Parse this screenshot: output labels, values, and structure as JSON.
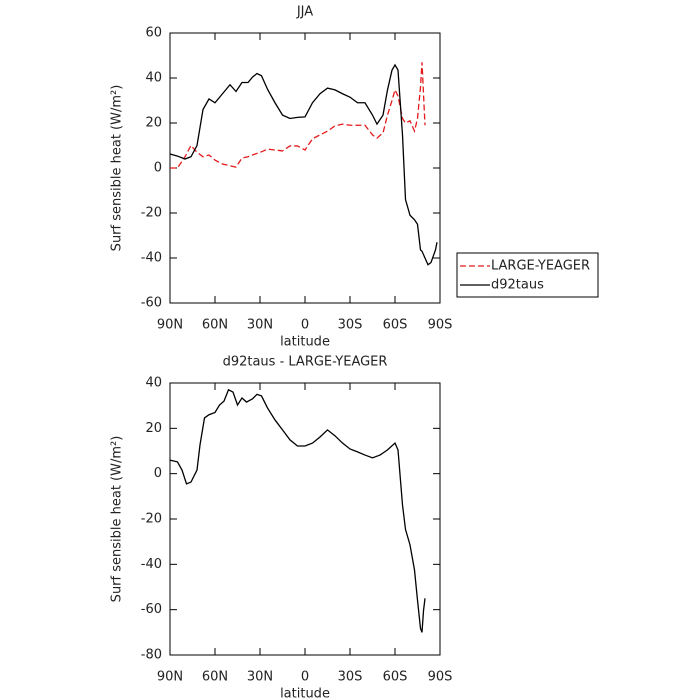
{
  "chart_data": [
    {
      "type": "line",
      "title": "JJA",
      "xlabel": "latitude",
      "ylabel": "Surf sensible heat (W/m²)",
      "x": [
        90,
        85,
        80,
        76,
        72,
        68,
        64,
        60,
        55,
        50,
        46,
        42,
        38,
        35,
        32,
        29,
        25,
        20,
        15,
        10,
        5,
        0,
        -5,
        -10,
        -15,
        -20,
        -25,
        -30,
        -35,
        -40,
        -45,
        -48,
        -52,
        -55,
        -58,
        -60,
        -62,
        -65,
        -67,
        -70,
        -73,
        -75,
        -77,
        -78,
        -80,
        -82,
        -84,
        -87,
        -88
      ],
      "series": [
        {
          "name": "LARGE-YEAGER",
          "color": "#e41a1c",
          "dashed": true,
          "values": [
            0,
            0,
            5,
            10,
            7,
            5,
            5.8,
            3.5,
            1.8,
            1,
            0.4,
            4.4,
            5,
            5.8,
            6.5,
            7.2,
            8.4,
            8,
            7.6,
            9.8,
            9.8,
            8,
            13,
            14.7,
            16.4,
            18.7,
            19.5,
            19,
            19,
            19,
            14.7,
            13.3,
            15.6,
            23.5,
            30,
            34.7,
            32,
            22,
            20,
            21,
            16.4,
            22,
            36,
            47,
            19,
            null,
            null,
            null,
            null
          ]
        },
        {
          "name": "d92taus",
          "color": "#000000",
          "dashed": false,
          "values": [
            6.2,
            5.3,
            4,
            5,
            10,
            26,
            30.7,
            29,
            33,
            37,
            34,
            38,
            38,
            40.4,
            42,
            41,
            35,
            29,
            23.5,
            22,
            22.5,
            22.7,
            29,
            33,
            35.5,
            34.7,
            33,
            31.5,
            29,
            29,
            23.5,
            19.5,
            23.5,
            34.7,
            43.5,
            45.8,
            43.5,
            14.7,
            -14,
            -21,
            -23,
            -25,
            -36.4,
            -37,
            -40,
            -43,
            -42,
            -36.4,
            -33
          ]
        }
      ],
      "xlim": [
        90,
        -90
      ],
      "xticks": [
        {
          "value": 90,
          "label": "90N"
        },
        {
          "value": 60,
          "label": "60N"
        },
        {
          "value": 30,
          "label": "30N"
        },
        0,
        {
          "value": -30,
          "label": "30S"
        },
        {
          "value": -60,
          "label": "60S"
        },
        {
          "value": -90,
          "label": "90S"
        }
      ],
      "ylim": [
        -60,
        60
      ],
      "yticks": [
        -60,
        -40,
        -20,
        0,
        20,
        40,
        60
      ],
      "legend": "right"
    },
    {
      "type": "line",
      "title": "d92taus - LARGE-YEAGER",
      "xlabel": "latitude",
      "ylabel": "Surf sensible heat (W/m²)",
      "x": [
        90,
        85,
        82,
        79,
        76,
        72,
        70,
        67,
        64,
        60,
        57,
        54,
        51,
        48,
        45,
        42,
        39,
        35,
        32,
        29,
        25,
        20,
        15,
        10,
        5,
        0,
        -5,
        -10,
        -15,
        -20,
        -25,
        -30,
        -35,
        -40,
        -45,
        -50,
        -55,
        -60,
        -62,
        -65,
        -67,
        -70,
        -73,
        -75,
        -77,
        -78,
        -79,
        -80
      ],
      "values": [
        6,
        5.2,
        1.6,
        -4.5,
        -3.7,
        1.6,
        12.7,
        24.6,
        26,
        27,
        30.3,
        32,
        37,
        36,
        30.3,
        33.4,
        31.6,
        33,
        35,
        34.3,
        29,
        23.7,
        19.3,
        14.9,
        12.2,
        12.2,
        13.5,
        16.2,
        19.3,
        16.7,
        13.5,
        10.9,
        9.6,
        8.2,
        7,
        8.2,
        10.5,
        13.5,
        10.5,
        -13.8,
        -24.6,
        -31.4,
        -42.5,
        -55.8,
        -68.3,
        -70,
        -60.5,
        -55
      ],
      "color": "#000000",
      "xlim": [
        90,
        -90
      ],
      "xticks": [
        {
          "value": 90,
          "label": "90N"
        },
        {
          "value": 60,
          "label": "60N"
        },
        {
          "value": 30,
          "label": "30N"
        },
        0,
        {
          "value": -30,
          "label": "30S"
        },
        {
          "value": -60,
          "label": "60S"
        },
        {
          "value": -90,
          "label": "90S"
        }
      ],
      "ylim": [
        -80,
        40
      ],
      "yticks": [
        -80,
        -60,
        -40,
        -20,
        0,
        20,
        40
      ]
    }
  ]
}
